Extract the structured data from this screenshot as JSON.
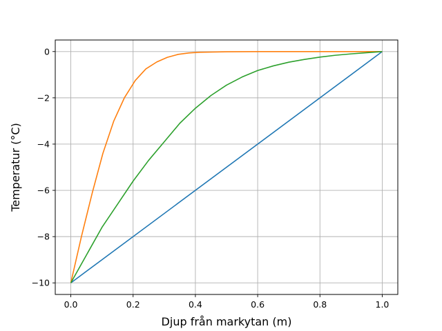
{
  "chart_data": {
    "type": "line",
    "title": "",
    "xlabel": "Djup från markytan (m)",
    "ylabel": "Temperatur (°C)",
    "xlim": [
      -0.05,
      1.05
    ],
    "ylim": [
      -10.5,
      0.5
    ],
    "xticks": [
      0.0,
      0.2,
      0.4,
      0.6,
      0.8,
      1.0
    ],
    "xtick_labels": [
      "0.0",
      "0.2",
      "0.4",
      "0.6",
      "0.8",
      "1.0"
    ],
    "yticks": [
      -10,
      -8,
      -6,
      -4,
      -2,
      0
    ],
    "ytick_labels": [
      "−10",
      "−8",
      "−6",
      "−4",
      "−2",
      "0"
    ],
    "grid": true,
    "legend": "none",
    "series": [
      {
        "color": "#1f77b4",
        "x": [
          0.0,
          1.0
        ],
        "y": [
          -10.0,
          0.0
        ]
      },
      {
        "color": "#ff7f0e",
        "x": [
          0.0,
          0.034,
          0.069,
          0.103,
          0.138,
          0.172,
          0.207,
          0.241,
          0.276,
          0.31,
          0.345,
          0.379,
          0.414,
          0.5,
          0.6,
          0.7,
          0.8,
          0.9,
          1.0
        ],
        "y": [
          -10.0,
          -8.0,
          -6.1,
          -4.4,
          -3.0,
          -2.0,
          -1.25,
          -0.75,
          -0.45,
          -0.25,
          -0.12,
          -0.06,
          -0.03,
          -0.01,
          0.0,
          0.0,
          0.0,
          0.0,
          0.0
        ]
      },
      {
        "color": "#2ca02c",
        "x": [
          0.0,
          0.05,
          0.1,
          0.15,
          0.2,
          0.25,
          0.3,
          0.35,
          0.4,
          0.45,
          0.5,
          0.55,
          0.6,
          0.65,
          0.7,
          0.75,
          0.8,
          0.85,
          0.9,
          0.95,
          1.0
        ],
        "y": [
          -10.0,
          -8.8,
          -7.6,
          -6.6,
          -5.6,
          -4.7,
          -3.9,
          -3.1,
          -2.45,
          -1.9,
          -1.45,
          -1.1,
          -0.82,
          -0.62,
          -0.46,
          -0.34,
          -0.24,
          -0.16,
          -0.1,
          -0.05,
          0.0
        ]
      }
    ]
  }
}
